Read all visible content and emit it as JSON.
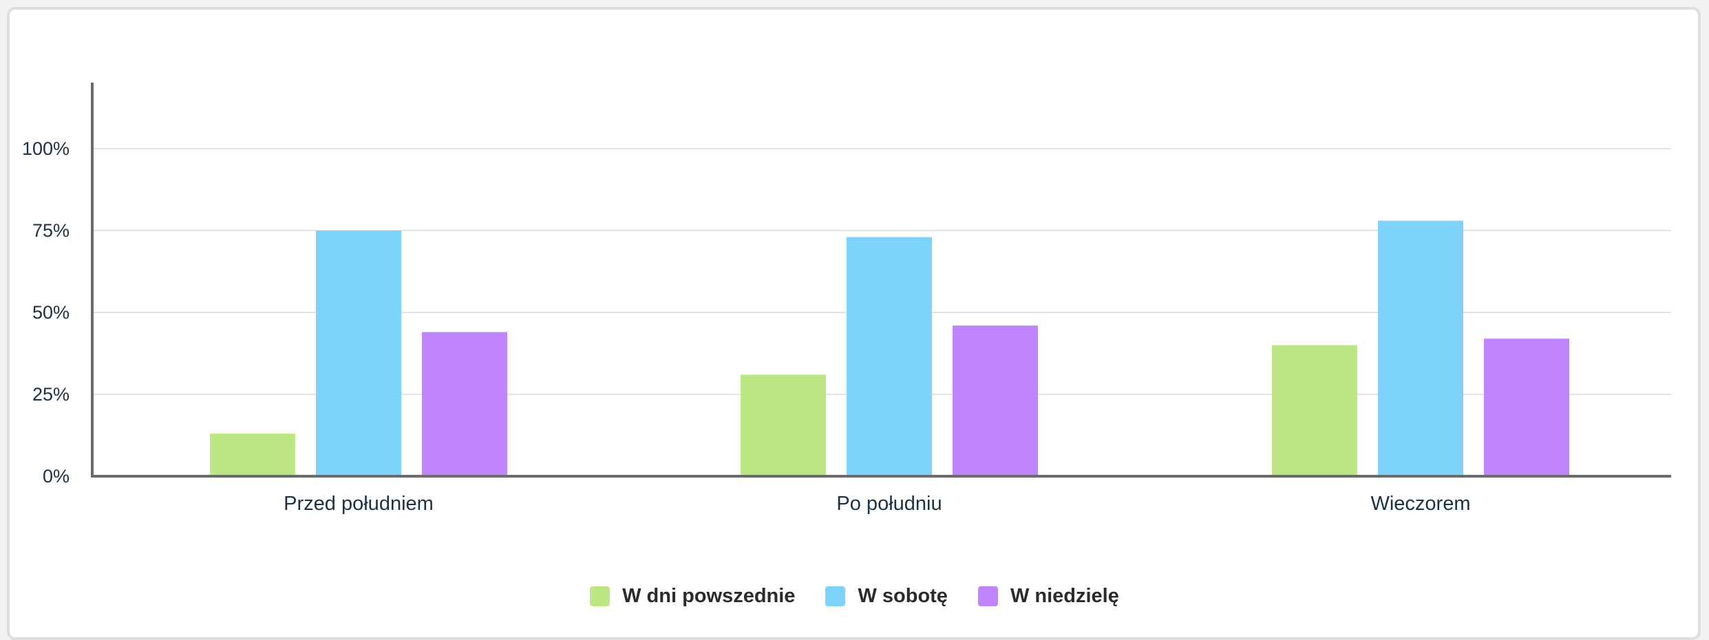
{
  "chart_data": {
    "type": "bar",
    "categories": [
      "Przed południem",
      "Po południu",
      "Wieczorem"
    ],
    "series": [
      {
        "name": "W dni powszednie",
        "color": "#bce784",
        "values": [
          13,
          31,
          40
        ]
      },
      {
        "name": "W sobotę",
        "color": "#7dd3fc",
        "values": [
          75,
          73,
          78
        ]
      },
      {
        "name": "W niedzielę",
        "color": "#c084fc",
        "values": [
          44,
          46,
          42
        ]
      }
    ],
    "ylim": [
      0,
      120
    ],
    "yticks": [
      0,
      25,
      50,
      75,
      100
    ],
    "ytick_labels": [
      "0%",
      "25%",
      "50%",
      "75%",
      "100%"
    ],
    "grid": true,
    "legend_position": "bottom-center"
  }
}
